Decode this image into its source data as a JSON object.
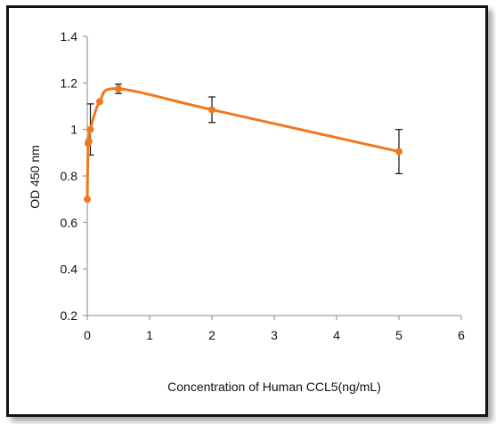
{
  "chart_data": {
    "type": "scatter",
    "title": "",
    "xlabel": "Concentration of Human CCL5(ng/mL)",
    "ylabel": "OD 450 nm",
    "xlim": [
      0,
      6
    ],
    "ylim": [
      0.2,
      1.4
    ],
    "xticks": [
      "0",
      "1",
      "2",
      "3",
      "4",
      "5",
      "6"
    ],
    "yticks": [
      "0.2",
      "0.4",
      "0.6",
      "0.8",
      "1",
      "1.2",
      "1.4"
    ],
    "grid": false,
    "legend": "none",
    "series": [
      {
        "color": "#f07820",
        "smooth_line": true,
        "x": [
          0.0,
          0.0125,
          0.025,
          0.05,
          0.2,
          0.5,
          2.0,
          5.0
        ],
        "y": [
          0.7,
          0.94,
          0.95,
          1.0,
          1.12,
          1.175,
          1.085,
          0.905
        ],
        "error": [
          0.0,
          0.0,
          0.0,
          0.11,
          0.0,
          0.02,
          0.055,
          0.095
        ]
      }
    ]
  }
}
